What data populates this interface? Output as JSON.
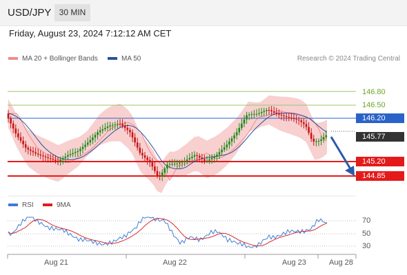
{
  "header": {
    "symbol": "USD/JPY",
    "timeframe": "30 MIN"
  },
  "datetime": "Friday, August 23, 2024 7:12:12 AM CET",
  "legend": {
    "bollinger": "MA 20 + Bollinger Bands",
    "ma50": "MA 50",
    "credit": "Research © 2024 Trading Central"
  },
  "levels": {
    "r2": {
      "value": "146.80",
      "color": "#6aa526"
    },
    "r1": {
      "value": "146.50",
      "color": "#6aa526"
    },
    "pivot": {
      "value": "146.20",
      "color": "#2a62c8"
    },
    "last": {
      "value": "145.77",
      "color": "#333333"
    },
    "s1": {
      "value": "145.20",
      "color": "#e41a1a"
    },
    "s2": {
      "value": "144.85",
      "color": "#e41a1a"
    }
  },
  "rsi": {
    "legend_rsi": "RSI",
    "legend_ma": "9MA",
    "ticks": [
      "70",
      "50",
      "30"
    ]
  },
  "x_axis": [
    "Aug 21",
    "Aug 22",
    "Aug 23",
    "Aug 28"
  ],
  "colors": {
    "bull": "#1a8a1a",
    "bear": "#c81414",
    "bands": "#f5c0c0",
    "ma50": "#2a4fa0",
    "rsi": "#3e7bd6",
    "rsi_ma": "#d42a2a"
  }
}
